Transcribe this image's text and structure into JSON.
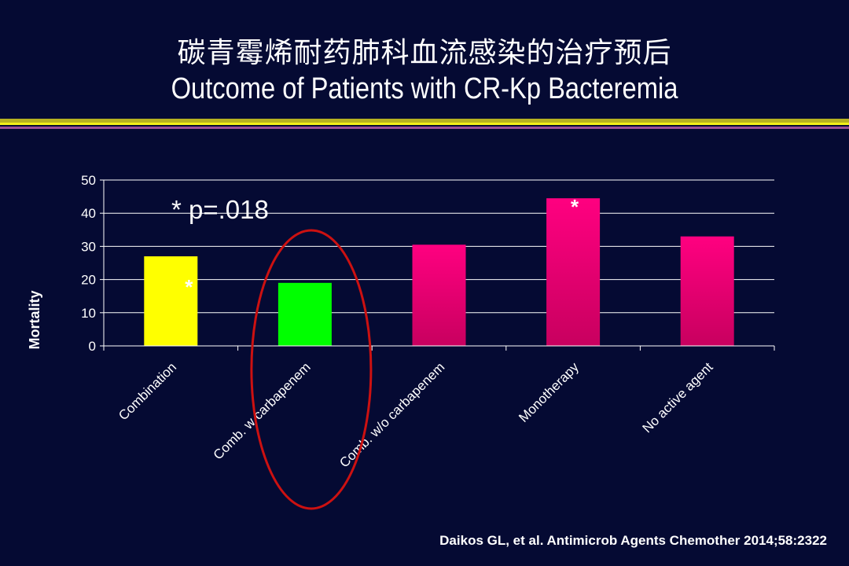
{
  "title_cn": "碳青霉烯耐药肺科血流感染的治疗预后",
  "title_en": "Outcome of Patients with CR-Kp Bacteremia",
  "citation": "Daikos GL, et al. Antimicrob Agents Chemother 2014;58:2322",
  "colors": {
    "background": "#050a33",
    "combination": "#ffff00",
    "comb_w_carbapenem": "#00ff00",
    "magenta": "#ff0080",
    "circle": "#cc1111"
  },
  "chart_data": {
    "type": "bar",
    "title": "",
    "xlabel": "",
    "ylabel": "Mortality",
    "ylim": [
      0,
      50
    ],
    "yticks": [
      0,
      10,
      20,
      30,
      40,
      50
    ],
    "grid": true,
    "categories": [
      "Combination",
      "Comb. w carbapenem",
      "Comb. w/o carbapenem",
      "Monotherapy",
      "No active agent"
    ],
    "values": [
      27,
      19,
      30.5,
      44.5,
      33
    ],
    "bar_colors": [
      "#ffff00",
      "#00ff00",
      "#ff0080",
      "#ff0080",
      "#ff0080"
    ],
    "significance_markers": [
      {
        "category": "Combination",
        "text": "*"
      },
      {
        "category": "Monotherapy",
        "text": "*"
      }
    ],
    "annotation": "* p=.018",
    "highlighted_category": "Comb. w carbapenem"
  }
}
